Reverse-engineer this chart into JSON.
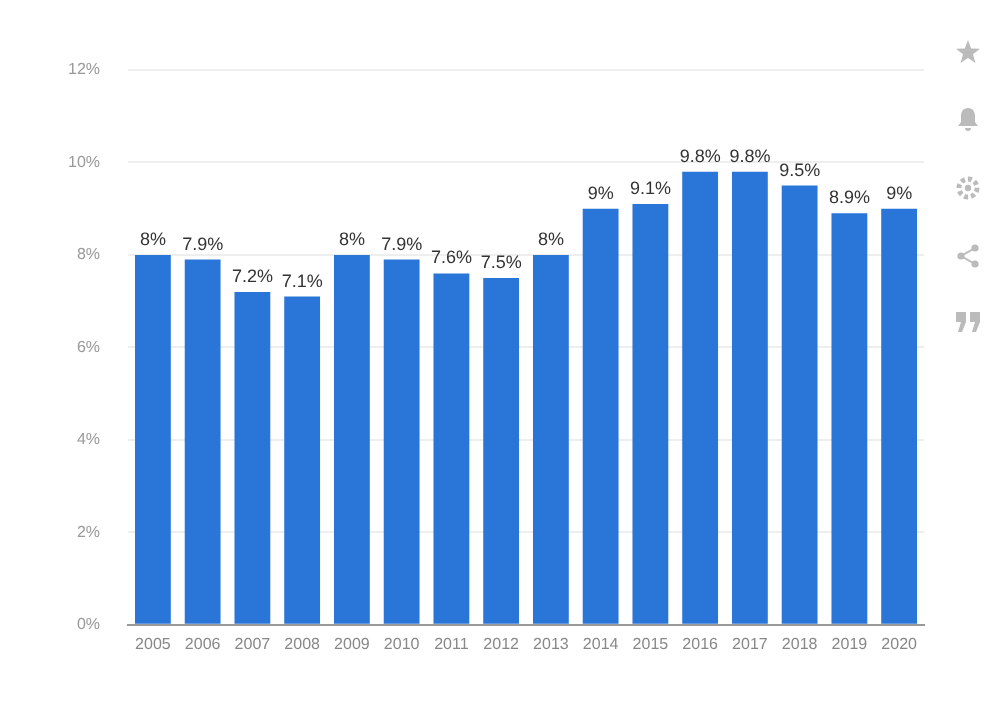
{
  "chart_data": {
    "type": "bar",
    "categories": [
      "2005",
      "2006",
      "2007",
      "2008",
      "2009",
      "2010",
      "2011",
      "2012",
      "2013",
      "2014",
      "2015",
      "2016",
      "2017",
      "2018",
      "2019",
      "2020"
    ],
    "values": [
      8,
      7.9,
      7.2,
      7.1,
      8,
      7.9,
      7.6,
      7.5,
      8,
      9,
      9.1,
      9.8,
      9.8,
      9.5,
      8.9,
      9
    ],
    "value_labels": [
      "8%",
      "7.9%",
      "7.2%",
      "7.1%",
      "8%",
      "7.9%",
      "7.6%",
      "7.5%",
      "8%",
      "9%",
      "9.1%",
      "9.8%",
      "9.8%",
      "9.5%",
      "8.9%",
      "9%"
    ],
    "color": "#2a75d8",
    "ylim": [
      0,
      12
    ],
    "yticks": [
      {
        "value": 0,
        "label": "0%"
      },
      {
        "value": 2,
        "label": "2%"
      },
      {
        "value": 4,
        "label": "4%"
      },
      {
        "value": 6,
        "label": "6%"
      },
      {
        "value": 8,
        "label": "8%"
      },
      {
        "value": 10,
        "label": "10%"
      },
      {
        "value": 12,
        "label": "12%"
      }
    ],
    "grid": "y"
  }
}
